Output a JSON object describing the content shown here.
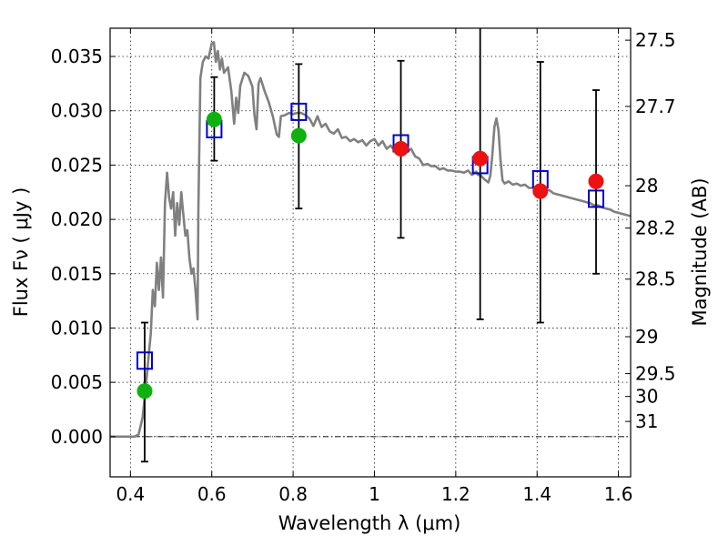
{
  "chart_data": {
    "type": "scatter",
    "xlabel": "Wavelength  λ (μm)",
    "ylabel": "Flux  Fν  ( μJy )",
    "ylabel_right": "Magnitude (AB)",
    "xlim": [
      0.35,
      1.63
    ],
    "ylim": [
      -0.0037,
      0.0376
    ],
    "grid": true,
    "x_ticks": [
      0.4,
      0.6,
      0.8,
      1.0,
      1.2,
      1.4,
      1.6
    ],
    "x_tick_labels": [
      "0.4",
      "0.6",
      "0.8",
      "1",
      "1.2",
      "1.4",
      "1.6"
    ],
    "y_ticks": [
      0.0,
      0.005,
      0.01,
      0.015,
      0.02,
      0.025,
      0.03,
      0.035
    ],
    "y_tick_labels": [
      "0.000",
      "0.005",
      "0.010",
      "0.015",
      "0.020",
      "0.025",
      "0.030",
      "0.035"
    ],
    "right_axis_ticks": [
      {
        "label": "27.5",
        "flux": 0.0365
      },
      {
        "label": "27.7",
        "flux": 0.0304
      },
      {
        "label": "28",
        "flux": 0.0231
      },
      {
        "label": "28.2",
        "flux": 0.0192
      },
      {
        "label": "28.5",
        "flux": 0.0145
      },
      {
        "label": "29",
        "flux": 0.0092
      },
      {
        "label": "29.5",
        "flux": 0.0058
      },
      {
        "label": "30",
        "flux": 0.0037
      },
      {
        "label": "31",
        "flux": 0.0014
      }
    ],
    "colors": {
      "template": "#808080",
      "observed_green": "#10b010",
      "observed_red": "#ee1111",
      "model_box": "#0000cc",
      "errorbar": "#000000"
    },
    "series": [
      {
        "kind": "template_spectrum",
        "points": [
          [
            0.35,
            0.0
          ],
          [
            0.41,
            0.0
          ],
          [
            0.42,
            0.0002
          ],
          [
            0.43,
            0.0018
          ],
          [
            0.44,
            0.0055
          ],
          [
            0.45,
            0.0095
          ],
          [
            0.455,
            0.0135
          ],
          [
            0.46,
            0.012
          ],
          [
            0.465,
            0.016
          ],
          [
            0.47,
            0.0135
          ],
          [
            0.475,
            0.0165
          ],
          [
            0.48,
            0.0128
          ],
          [
            0.485,
            0.0215
          ],
          [
            0.49,
            0.0243
          ],
          [
            0.495,
            0.022
          ],
          [
            0.5,
            0.021
          ],
          [
            0.505,
            0.0225
          ],
          [
            0.51,
            0.0185
          ],
          [
            0.515,
            0.0215
          ],
          [
            0.52,
            0.0195
          ],
          [
            0.525,
            0.0225
          ],
          [
            0.53,
            0.0205
          ],
          [
            0.535,
            0.0185
          ],
          [
            0.54,
            0.019
          ],
          [
            0.545,
            0.0165
          ],
          [
            0.55,
            0.015
          ],
          [
            0.555,
            0.0155
          ],
          [
            0.56,
            0.0135
          ],
          [
            0.565,
            0.0108
          ],
          [
            0.567,
            0.021
          ],
          [
            0.572,
            0.033
          ],
          [
            0.578,
            0.0345
          ],
          [
            0.585,
            0.035
          ],
          [
            0.592,
            0.0348
          ],
          [
            0.6,
            0.0362
          ],
          [
            0.605,
            0.0363
          ],
          [
            0.61,
            0.0345
          ],
          [
            0.615,
            0.0355
          ],
          [
            0.62,
            0.0338
          ],
          [
            0.625,
            0.0348
          ],
          [
            0.63,
            0.0335
          ],
          [
            0.64,
            0.034
          ],
          [
            0.648,
            0.0318
          ],
          [
            0.655,
            0.0288
          ],
          [
            0.66,
            0.0312
          ],
          [
            0.665,
            0.0298
          ],
          [
            0.67,
            0.0323
          ],
          [
            0.68,
            0.0335
          ],
          [
            0.69,
            0.0332
          ],
          [
            0.7,
            0.0322
          ],
          [
            0.705,
            0.0296
          ],
          [
            0.71,
            0.0283
          ],
          [
            0.715,
            0.0325
          ],
          [
            0.72,
            0.033
          ],
          [
            0.73,
            0.0318
          ],
          [
            0.74,
            0.0308
          ],
          [
            0.75,
            0.0295
          ],
          [
            0.76,
            0.0278
          ],
          [
            0.765,
            0.0276
          ],
          [
            0.77,
            0.0295
          ],
          [
            0.78,
            0.0296
          ],
          [
            0.79,
            0.0298
          ],
          [
            0.8,
            0.0297
          ],
          [
            0.81,
            0.0298
          ],
          [
            0.82,
            0.0298
          ],
          [
            0.83,
            0.0296
          ],
          [
            0.84,
            0.0293
          ],
          [
            0.85,
            0.0286
          ],
          [
            0.86,
            0.0295
          ],
          [
            0.87,
            0.0285
          ],
          [
            0.88,
            0.0288
          ],
          [
            0.89,
            0.0281
          ],
          [
            0.9,
            0.0279
          ],
          [
            0.91,
            0.0283
          ],
          [
            0.92,
            0.0275
          ],
          [
            0.93,
            0.0276
          ],
          [
            0.94,
            0.0272
          ],
          [
            0.95,
            0.0274
          ],
          [
            0.96,
            0.0271
          ],
          [
            0.97,
            0.0273
          ],
          [
            0.98,
            0.0268
          ],
          [
            0.99,
            0.0272
          ],
          [
            1.0,
            0.0274
          ],
          [
            1.01,
            0.0268
          ],
          [
            1.02,
            0.0272
          ],
          [
            1.03,
            0.0265
          ],
          [
            1.04,
            0.0268
          ],
          [
            1.05,
            0.0263
          ],
          [
            1.06,
            0.0265
          ],
          [
            1.07,
            0.0262
          ],
          [
            1.08,
            0.0262
          ],
          [
            1.09,
            0.0265
          ],
          [
            1.1,
            0.0258
          ],
          [
            1.11,
            0.0256
          ],
          [
            1.12,
            0.025
          ],
          [
            1.13,
            0.0251
          ],
          [
            1.14,
            0.0249
          ],
          [
            1.15,
            0.0249
          ],
          [
            1.16,
            0.0246
          ],
          [
            1.17,
            0.0247
          ],
          [
            1.18,
            0.0245
          ],
          [
            1.19,
            0.0245
          ],
          [
            1.2,
            0.0244
          ],
          [
            1.21,
            0.0244
          ],
          [
            1.22,
            0.0243
          ],
          [
            1.23,
            0.0245
          ],
          [
            1.24,
            0.0241
          ],
          [
            1.25,
            0.0244
          ],
          [
            1.255,
            0.0241
          ],
          [
            1.26,
            0.0241
          ],
          [
            1.27,
            0.0237
          ],
          [
            1.28,
            0.0234
          ],
          [
            1.285,
            0.024
          ],
          [
            1.29,
            0.026
          ],
          [
            1.295,
            0.0285
          ],
          [
            1.3,
            0.0293
          ],
          [
            1.305,
            0.0282
          ],
          [
            1.31,
            0.0255
          ],
          [
            1.315,
            0.0236
          ],
          [
            1.32,
            0.0233
          ],
          [
            1.33,
            0.0235
          ],
          [
            1.34,
            0.0232
          ],
          [
            1.35,
            0.0233
          ],
          [
            1.36,
            0.0231
          ],
          [
            1.37,
            0.0232
          ],
          [
            1.38,
            0.0229
          ],
          [
            1.39,
            0.0229
          ],
          [
            1.4,
            0.0228
          ],
          [
            1.41,
            0.0228
          ],
          [
            1.42,
            0.0227
          ],
          [
            1.43,
            0.0227
          ],
          [
            1.44,
            0.0224
          ],
          [
            1.45,
            0.0223
          ],
          [
            1.46,
            0.0222
          ],
          [
            1.47,
            0.0221
          ],
          [
            1.48,
            0.022
          ],
          [
            1.49,
            0.0219
          ],
          [
            1.5,
            0.0218
          ],
          [
            1.51,
            0.0217
          ],
          [
            1.52,
            0.0216
          ],
          [
            1.53,
            0.0215
          ],
          [
            1.54,
            0.0213
          ],
          [
            1.55,
            0.0213
          ],
          [
            1.56,
            0.0211
          ],
          [
            1.57,
            0.021
          ],
          [
            1.58,
            0.0209
          ],
          [
            1.59,
            0.0207
          ],
          [
            1.6,
            0.0206
          ],
          [
            1.61,
            0.0205
          ],
          [
            1.62,
            0.0204
          ],
          [
            1.63,
            0.0203
          ]
        ]
      },
      {
        "kind": "observed_flux_with_errors",
        "points": [
          {
            "x": 0.435,
            "y": 0.0042,
            "err_low": -0.0023,
            "err_high": 0.0105,
            "color": "green"
          },
          {
            "x": 0.606,
            "y": 0.0292,
            "err_low": 0.0254,
            "err_high": 0.0331,
            "color": "green"
          },
          {
            "x": 0.814,
            "y": 0.0277,
            "err_low": 0.021,
            "err_high": 0.0343,
            "color": "green"
          },
          {
            "x": 1.065,
            "y": 0.0265,
            "err_low": 0.0183,
            "err_high": 0.0346,
            "color": "red"
          },
          {
            "x": 1.26,
            "y": 0.0256,
            "err_low": 0.0108,
            "err_high": 0.0385,
            "color": "red"
          },
          {
            "x": 1.408,
            "y": 0.0226,
            "err_low": 0.0105,
            "err_high": 0.0345,
            "color": "red"
          },
          {
            "x": 1.545,
            "y": 0.0235,
            "err_low": 0.015,
            "err_high": 0.0319,
            "color": "red"
          }
        ]
      },
      {
        "kind": "model_band_flux",
        "points": [
          {
            "x": 0.435,
            "y": 0.007
          },
          {
            "x": 0.606,
            "y": 0.0283
          },
          {
            "x": 0.814,
            "y": 0.0299
          },
          {
            "x": 1.065,
            "y": 0.027
          },
          {
            "x": 1.26,
            "y": 0.025
          },
          {
            "x": 1.408,
            "y": 0.0237
          },
          {
            "x": 1.545,
            "y": 0.0219
          }
        ]
      }
    ]
  }
}
